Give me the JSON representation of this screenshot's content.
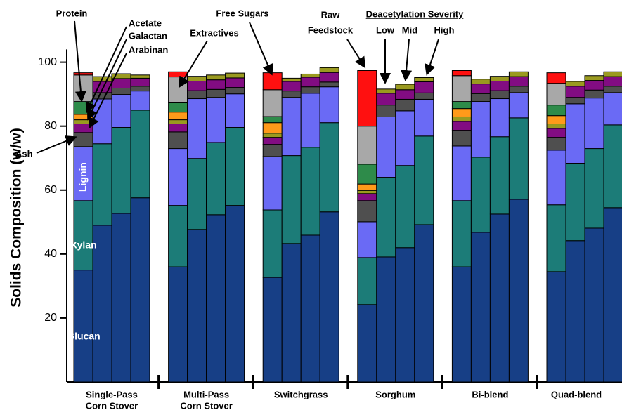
{
  "chart_data": {
    "type": "stacked_bar",
    "y_label": "Solids Composition (w/w)",
    "ylim": [
      0,
      104
    ],
    "yticks": [
      20,
      40,
      60,
      80,
      100
    ],
    "categories": [
      null,
      null,
      null,
      null,
      null,
      null,
      null,
      null,
      null,
      null,
      null,
      null,
      null,
      null,
      null,
      null,
      null,
      null,
      null,
      null,
      null,
      null,
      null,
      null
    ],
    "groups": [
      [
        "Single-Pass",
        "Corn Stover"
      ],
      [
        "Multi-Pass",
        "Corn Stover"
      ],
      [
        "Switchgrass"
      ],
      [
        "Sorghum"
      ],
      [
        "Bi-blend"
      ],
      [
        "Quad-blend"
      ]
    ],
    "annotations": {
      "raw_feedstock": [
        "Raw",
        "Feedstock"
      ],
      "severity_title": "Deacetylation Severity",
      "severity_levels": [
        "Low",
        "Mid",
        "High"
      ]
    },
    "series": [
      {
        "name": "Glucan",
        "color": "#173f86",
        "values": [
          35,
          49,
          52.7,
          57.6,
          36,
          47.7,
          52.3,
          55.2,
          32.7,
          43.3,
          45.9,
          53.2,
          24.2,
          39.1,
          42,
          49.2,
          36,
          46.8,
          52.5,
          57.1,
          34.5,
          44.2,
          48.1,
          54.5
        ]
      },
      {
        "name": "Xylan",
        "color": "#1c7c78",
        "values": [
          21.7,
          25.5,
          26.9,
          27.4,
          19.2,
          22.2,
          22.6,
          24.4,
          21.1,
          27.5,
          27.5,
          27.9,
          14.7,
          24.9,
          25.7,
          27.7,
          20.7,
          23.5,
          24.2,
          25.5,
          20.9,
          24.2,
          24.9,
          25.9
        ]
      },
      {
        "name": "Lignin",
        "color": "#6a6af5",
        "values": [
          16.9,
          14,
          10.3,
          6,
          17.8,
          18.7,
          14.1,
          10.5,
          16.7,
          18.2,
          16.9,
          11.2,
          11.2,
          18.9,
          17.1,
          11.5,
          17.1,
          17.4,
          11.9,
          7.9,
          17.1,
          18.6,
          15.8,
          10.1
        ]
      },
      {
        "name": "Ash",
        "color": "#4f4f4f",
        "values": [
          4.4,
          2,
          2,
          1.5,
          5.2,
          2.5,
          2.5,
          2,
          3.8,
          2,
          2,
          1.5,
          6.6,
          3.7,
          3.6,
          2,
          4.9,
          2.5,
          2.5,
          2,
          4,
          2,
          2.5,
          2
        ]
      },
      {
        "name": "Arabinan",
        "color": "#820c82",
        "values": [
          2.7,
          3.5,
          3,
          2.5,
          2.5,
          3,
          3,
          3,
          2.2,
          3,
          3,
          3,
          2.2,
          3.7,
          3,
          3.5,
          2.8,
          3,
          3,
          3,
          2.8,
          3.5,
          3,
          3
        ]
      },
      {
        "name": "Galactan",
        "color": "#9a9a20",
        "values": [
          1.3,
          1.5,
          1.5,
          1,
          1.3,
          1.5,
          1.5,
          1.5,
          1.3,
          1,
          1,
          1.5,
          1,
          1.3,
          1.7,
          1.3,
          1.4,
          1.5,
          1.5,
          1.5,
          1.4,
          1.5,
          1.5,
          1.5
        ]
      },
      {
        "name": "Acetate",
        "color": "#ff9a1a",
        "values": [
          1.7,
          0,
          0,
          0,
          2.4,
          0,
          0,
          0,
          3.3,
          0,
          0,
          0,
          2,
          0,
          0,
          0,
          2.6,
          0,
          0,
          0,
          2.6,
          0,
          0,
          0
        ]
      },
      {
        "name": "Protein",
        "color": "#2e8b4a",
        "values": [
          4,
          0,
          0,
          0,
          2.9,
          0,
          0,
          0,
          1.9,
          0,
          0,
          0,
          6.2,
          0,
          0,
          0,
          2.2,
          0,
          0,
          0,
          3.3,
          0,
          0,
          0
        ]
      },
      {
        "name": "Extractives",
        "color": "#a8a8a8",
        "values": [
          8.3,
          0,
          0,
          0,
          8.1,
          0,
          0,
          0,
          8.4,
          0,
          0,
          0,
          11.9,
          0,
          0,
          0,
          8.1,
          0,
          0,
          0,
          6.8,
          0,
          0,
          0
        ]
      },
      {
        "name": "Free Sugars",
        "color": "#ff1010",
        "values": [
          0.7,
          0,
          0,
          0,
          1.6,
          0,
          0,
          0,
          5.3,
          0,
          0,
          0,
          17.4,
          0,
          0,
          0,
          1.6,
          0,
          0,
          0,
          3.3,
          0,
          0,
          0
        ]
      }
    ]
  }
}
